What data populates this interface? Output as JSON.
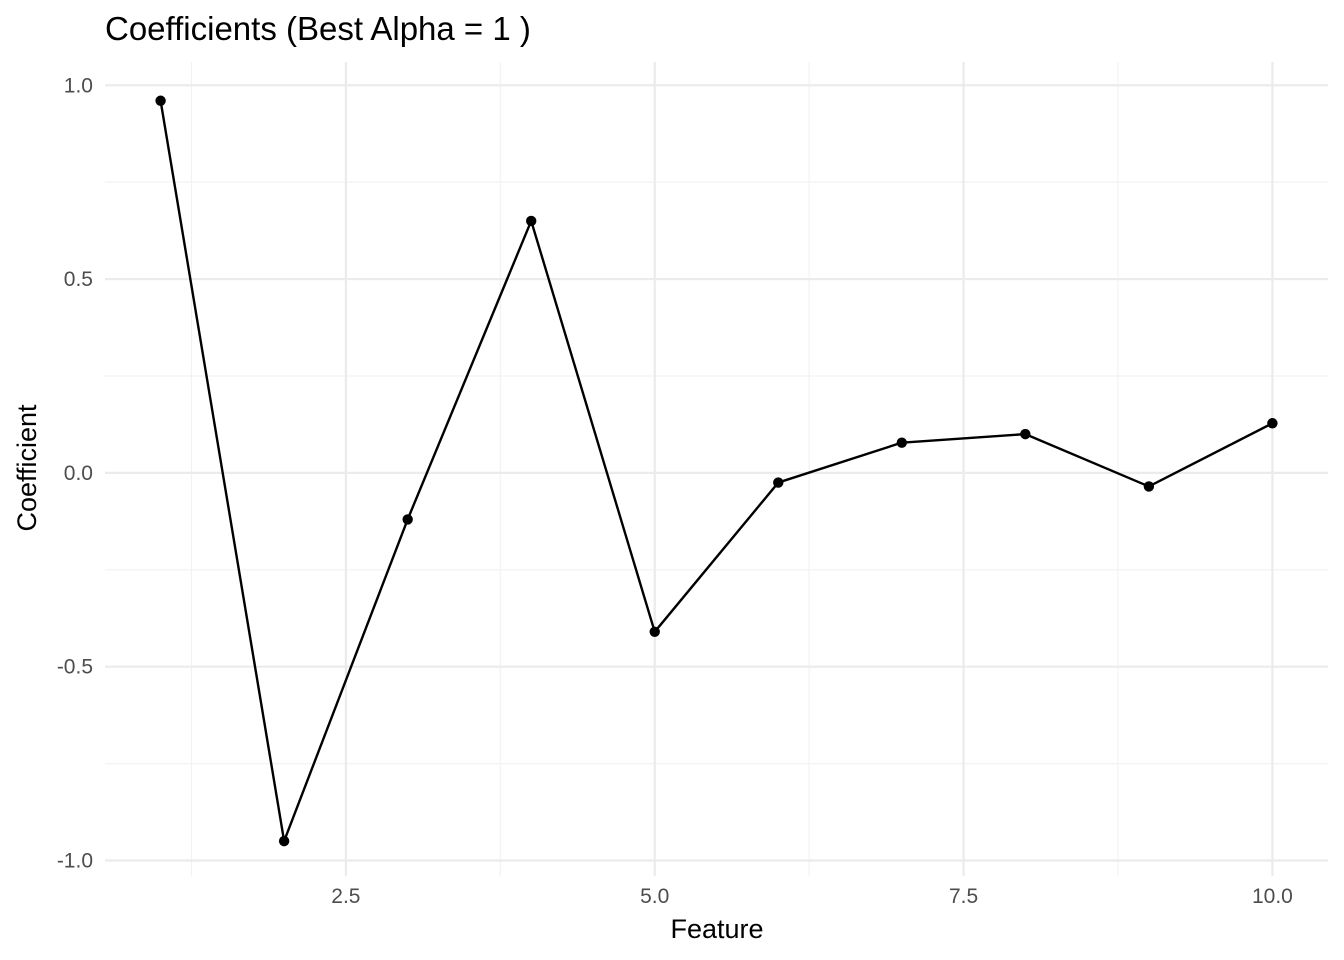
{
  "chart_data": {
    "type": "line",
    "title": "Coefficients (Best Alpha = 1 )",
    "xlabel": "Feature",
    "ylabel": "Coefficient",
    "xlim": [
      0.55,
      10.45
    ],
    "ylim": [
      -1.04,
      1.06
    ],
    "x_ticks": [
      2.5,
      5.0,
      7.5,
      10.0
    ],
    "x_tick_labels": [
      "2.5",
      "5.0",
      "7.5",
      "10.0"
    ],
    "x_minor_ticks": [
      1.25,
      3.75,
      6.25,
      8.75
    ],
    "y_ticks": [
      -1.0,
      -0.5,
      0.0,
      0.5,
      1.0
    ],
    "y_tick_labels": [
      "-1.0",
      "-0.5",
      "0.0",
      "0.5",
      "1.0"
    ],
    "y_minor_ticks": [
      -0.75,
      -0.25,
      0.25,
      0.75
    ],
    "grid": true,
    "legend": "none",
    "x": [
      1,
      2,
      3,
      4,
      5,
      6,
      7,
      8,
      9,
      10
    ],
    "series": [
      {
        "values": [
          0.96,
          -0.95,
          -0.12,
          0.65,
          -0.41,
          -0.025,
          0.078,
          0.1,
          -0.035,
          0.128
        ],
        "color": "#000000"
      }
    ]
  }
}
